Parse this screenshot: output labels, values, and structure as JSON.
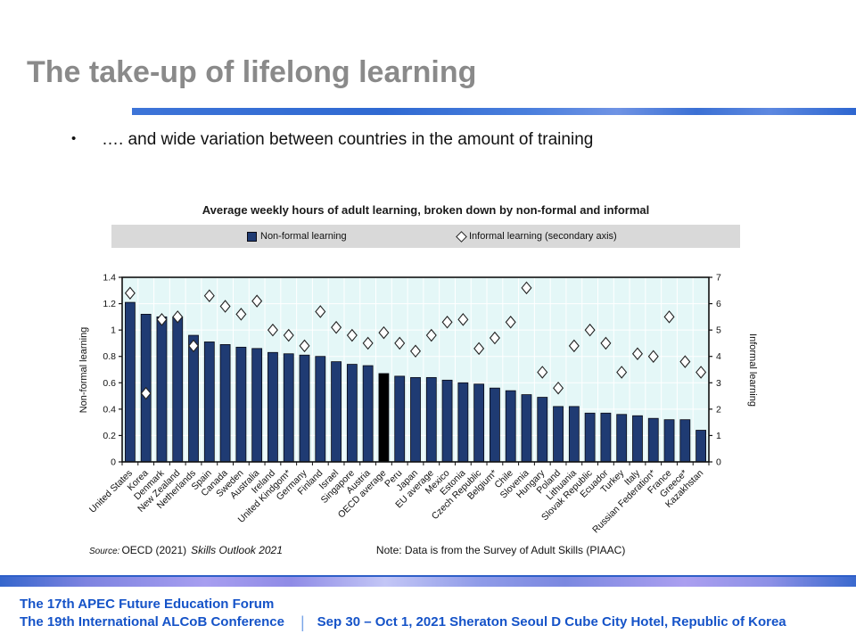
{
  "slide": {
    "title": "The take-up of lifelong learning",
    "bullet_marker": "•",
    "bullet": "…. and wide variation between countries in the amount of training"
  },
  "chart": {
    "title": "Average weekly hours of adult learning, broken down by non-formal and informal",
    "legend": [
      {
        "label": "Non-formal learning",
        "marker": "filled-square"
      },
      {
        "label": "Informal learning (secondary axis)",
        "marker": "open-diamond"
      }
    ],
    "source_label": "Source:",
    "source_body": "OECD (2021)",
    "source_italic": "Skills Outlook 2021",
    "note": "Note: Data is from the Survey of Adult Skills (PIAAC)"
  },
  "chart_data": {
    "type": "bar",
    "title": "Average weekly hours of adult learning, broken down by non-formal and informal",
    "categories": [
      "United States",
      "Korea",
      "Denmark",
      "New Zealand",
      "Netherlands",
      "Spain",
      "Canada",
      "Sweden",
      "Australia",
      "Ireland",
      "United Kindgom*",
      "Germany",
      "Finland",
      "Israel",
      "Singapore",
      "Austria",
      "OECD average",
      "Peru",
      "Japan",
      "EU average",
      "Mexico",
      "Estonia",
      "Czech Republic",
      "Belgium*",
      "Chile",
      "Slovenia",
      "Hungary",
      "Poland",
      "Lithuania",
      "Slovak Republic",
      "Ecuador",
      "Turkey",
      "Italy",
      "Russian Federation*",
      "France",
      "Greece*",
      "Kazakhstan"
    ],
    "series": [
      {
        "name": "Non-formal learning",
        "type": "bar",
        "axis": "left",
        "values": [
          1.21,
          1.12,
          1.1,
          1.1,
          0.96,
          0.91,
          0.89,
          0.87,
          0.86,
          0.83,
          0.82,
          0.81,
          0.8,
          0.76,
          0.74,
          0.73,
          0.67,
          0.65,
          0.64,
          0.64,
          0.62,
          0.6,
          0.59,
          0.56,
          0.54,
          0.51,
          0.49,
          0.42,
          0.42,
          0.37,
          0.37,
          0.36,
          0.35,
          0.33,
          0.32,
          0.32,
          0.24
        ]
      },
      {
        "name": "Informal learning (secondary axis)",
        "type": "scatter",
        "axis": "right",
        "values": [
          6.4,
          2.6,
          5.4,
          5.5,
          4.4,
          6.3,
          5.9,
          5.6,
          6.1,
          5.0,
          4.8,
          4.4,
          5.7,
          5.1,
          4.8,
          4.5,
          4.9,
          4.5,
          4.2,
          4.8,
          5.3,
          5.4,
          4.3,
          4.7,
          5.3,
          6.6,
          3.4,
          2.8,
          4.4,
          5.0,
          4.5,
          3.4,
          4.1,
          4.0,
          5.5,
          3.8,
          3.4
        ]
      }
    ],
    "left_axis": {
      "label": "Non-formal learning",
      "range": [
        0,
        1.4
      ],
      "ticks": [
        0,
        0.2,
        0.4,
        0.6,
        0.8,
        1,
        1.2,
        1.4
      ]
    },
    "right_axis": {
      "label": "Informal learning",
      "range": [
        0,
        7
      ],
      "ticks": [
        0,
        1,
        2,
        3,
        4,
        5,
        6,
        7
      ]
    },
    "highlight_category": "OECD average",
    "legend_position": "top",
    "grid": true,
    "colors": {
      "bar": "#1f3b73",
      "highlight_bar": "#000000",
      "plot_bg": "#e4f7f7",
      "grid": "#ffffff",
      "marker_fill": "#ffffff",
      "marker_stroke": "#222222"
    }
  },
  "footer": {
    "line1": "The 17th APEC Future Education Forum",
    "line2_left": "The 19th International ALCoB Conference",
    "separator": "|",
    "line2_right": "Sep 30 – Oct 1, 2021 Sheraton Seoul D Cube City Hotel, Republic of Korea"
  }
}
